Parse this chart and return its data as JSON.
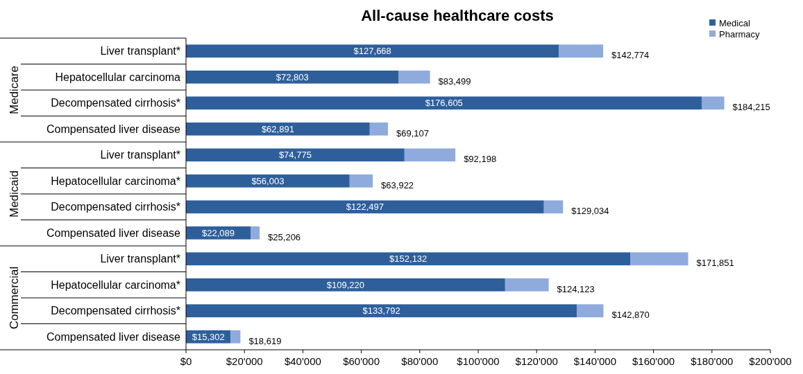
{
  "chart_data": {
    "type": "bar",
    "orientation": "horizontal",
    "stacked": true,
    "title": "All-cause healthcare costs",
    "categories": [
      "Liver transplant*",
      "Hepatocellular carcinoma",
      "Decompensated cirrhosis*",
      "Compensated liver disease",
      "Liver transplant*",
      "Hepatocellular carcinoma*",
      "Decompensated cirrhosis*",
      "Compensated liver disease",
      "Liver transplant*",
      "Hepatocellular carcinoma*",
      "Decompensated cirrhosis*",
      "Compensated liver disease"
    ],
    "series": [
      {
        "name": "Medical",
        "color": "#2e5f9b",
        "values": [
          127668,
          72803,
          176605,
          62891,
          74775,
          56003,
          122497,
          22089,
          152132,
          109220,
          133792,
          15302
        ],
        "value_labels": [
          "$127,668",
          "$72,803",
          "$176,605",
          "$62,891",
          "$74,775",
          "$56,003",
          "$122,497",
          "$22,089",
          "$152,132",
          "$109,220",
          "$133,792",
          "$15,302"
        ]
      },
      {
        "name": "Pharmacy",
        "color": "#8faadc",
        "values": [
          15106,
          10696,
          7610,
          6216,
          17423,
          7919,
          6537,
          3117,
          19719,
          14903,
          9078,
          3317
        ]
      }
    ],
    "totals": [
      "$142,774",
      "$83,499",
      "$184,215",
      "$69,107",
      "$92,198",
      "$63,922",
      "$129,034",
      "$25,206",
      "$171,851",
      "$124,123",
      "$142,870",
      "$18,619"
    ],
    "annotations": [
      "Medicare",
      "Medicaid",
      "Commercial"
    ],
    "xlim": [
      0,
      200000
    ],
    "xticks": [
      {
        "value": 0,
        "label": "$0"
      },
      {
        "value": 20000,
        "label": "$20'000"
      },
      {
        "value": 40000,
        "label": "$40'000"
      },
      {
        "value": 60000,
        "label": "$60'000"
      },
      {
        "value": 80000,
        "label": "$80'000"
      },
      {
        "value": 100000,
        "label": "$100'000"
      },
      {
        "value": 120000,
        "label": "$120'000"
      },
      {
        "value": 140000,
        "label": "$140'000"
      },
      {
        "value": 160000,
        "label": "$160'000"
      },
      {
        "value": 180000,
        "label": "$180'000"
      },
      {
        "value": 200000,
        "label": "$200'000"
      }
    ],
    "legend": "top right"
  }
}
